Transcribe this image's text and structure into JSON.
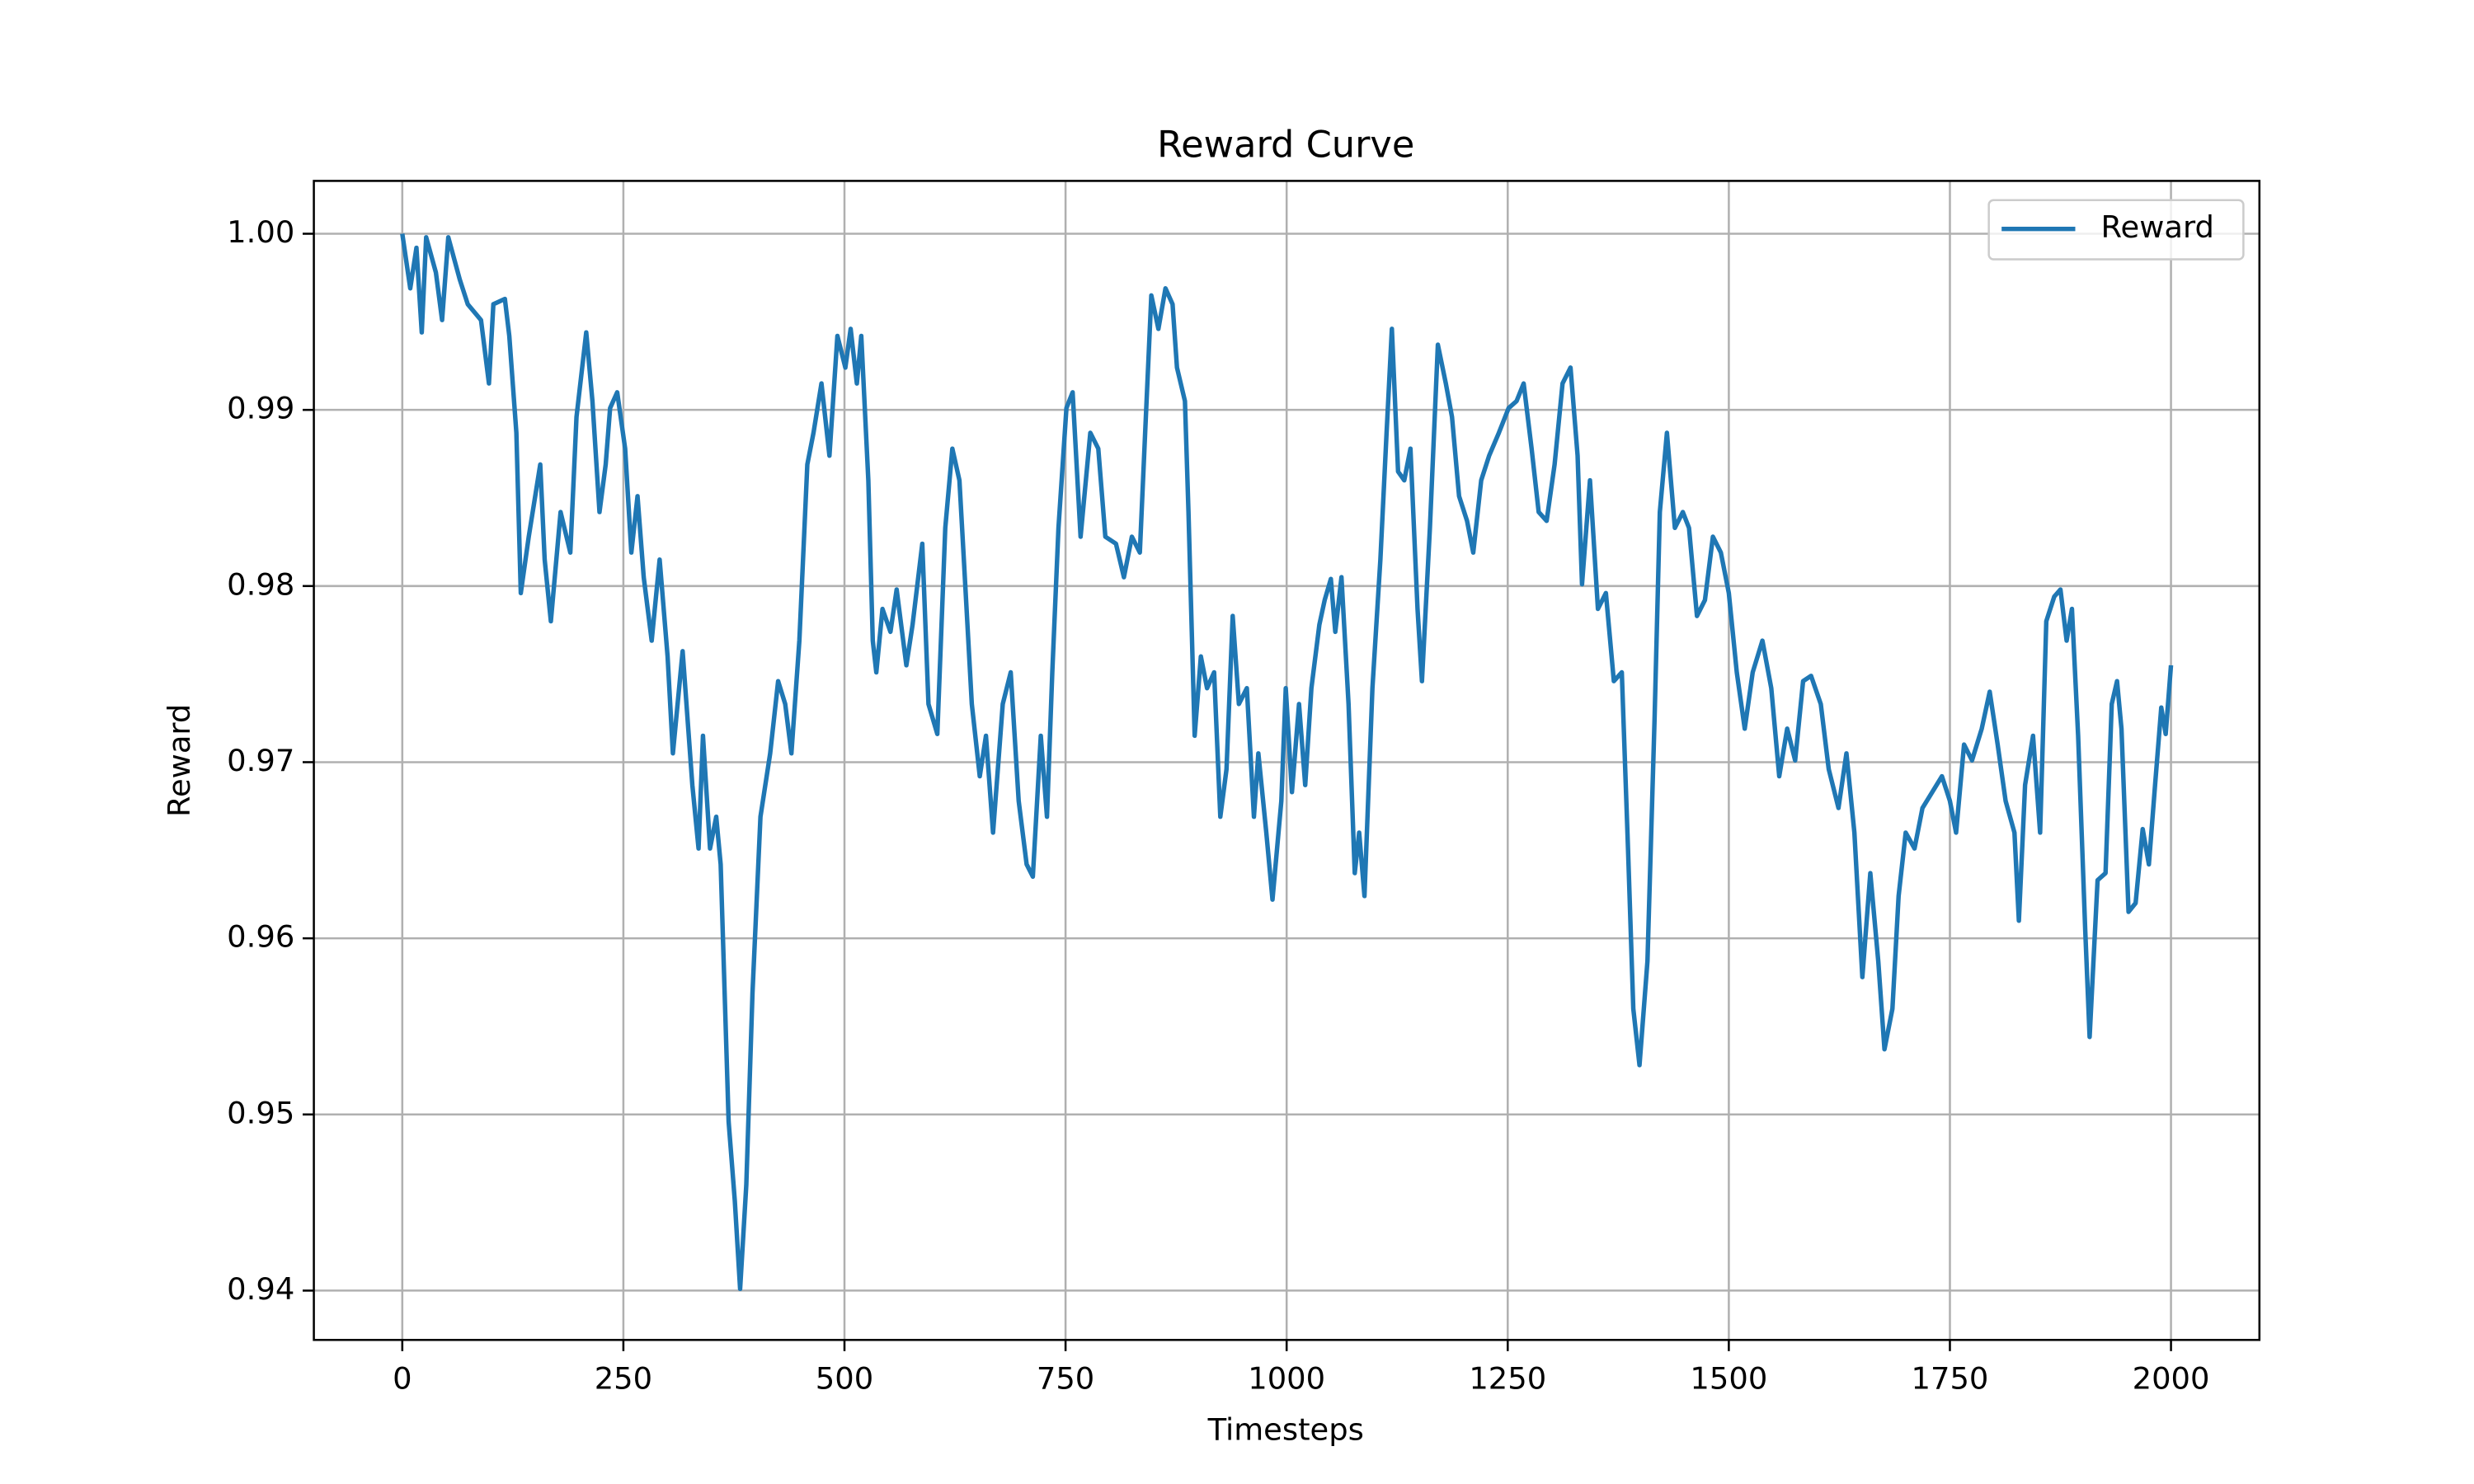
{
  "chart_data": {
    "type": "line",
    "title": "Reward Curve",
    "x_label": "Timesteps",
    "y_label": "Reward",
    "x": [
      0,
      9,
      16,
      22,
      27,
      38,
      45,
      52,
      65,
      74,
      89,
      98,
      103,
      116,
      121,
      129,
      134,
      143,
      156,
      161,
      168,
      179,
      190,
      197,
      208,
      215,
      223,
      230,
      235,
      243,
      252,
      259,
      266,
      273,
      282,
      291,
      300,
      306,
      317,
      328,
      335,
      340,
      348,
      355,
      360,
      369,
      376,
      382,
      389,
      396,
      405,
      416,
      425,
      433,
      440,
      449,
      458,
      465,
      474,
      483,
      492,
      501,
      507,
      514,
      519,
      527,
      532,
      536,
      543,
      552,
      559,
      570,
      577,
      588,
      595,
      605,
      614,
      622,
      630,
      635,
      644,
      653,
      660,
      668,
      679,
      688,
      697,
      706,
      713,
      722,
      729,
      735,
      742,
      751,
      758,
      767,
      778,
      787,
      795,
      807,
      816,
      825,
      834,
      840,
      847,
      855,
      863,
      871,
      876,
      885,
      889,
      896,
      903,
      910,
      918,
      925,
      932,
      939,
      946,
      955,
      963,
      968,
      977,
      984,
      994,
      999,
      1006,
      1014,
      1021,
      1028,
      1037,
      1043,
      1050,
      1055,
      1062,
      1070,
      1077,
      1082,
      1088,
      1097,
      1106,
      1113,
      1119,
      1126,
      1133,
      1140,
      1148,
      1153,
      1162,
      1171,
      1180,
      1187,
      1195,
      1204,
      1211,
      1220,
      1229,
      1240,
      1251,
      1260,
      1268,
      1277,
      1285,
      1294,
      1303,
      1312,
      1321,
      1329,
      1334,
      1343,
      1352,
      1361,
      1370,
      1379,
      1386,
      1392,
      1399,
      1408,
      1416,
      1422,
      1430,
      1439,
      1448,
      1455,
      1464,
      1473,
      1482,
      1491,
      1500,
      1509,
      1518,
      1527,
      1538,
      1548,
      1557,
      1566,
      1575,
      1584,
      1593,
      1604,
      1613,
      1624,
      1633,
      1642,
      1651,
      1660,
      1669,
      1676,
      1685,
      1692,
      1700,
      1710,
      1719,
      1730,
      1741,
      1750,
      1757,
      1766,
      1775,
      1786,
      1795,
      1804,
      1813,
      1823,
      1828,
      1835,
      1844,
      1852,
      1859,
      1868,
      1875,
      1882,
      1888,
      1895,
      1903,
      1908,
      1917,
      1926,
      1933,
      1939,
      1944,
      1952,
      1960,
      1968,
      1975,
      1982,
      1989,
      1994,
      2000
    ],
    "series": [
      {
        "name": "Reward",
        "color": "#1f77b4",
        "values": [
          1.0,
          0.9969,
          0.9992,
          0.9944,
          0.9998,
          0.9978,
          0.9951,
          0.9998,
          0.9974,
          0.996,
          0.9951,
          0.9915,
          0.996,
          0.9963,
          0.9942,
          0.9887,
          0.9796,
          0.9828,
          0.9869,
          0.9815,
          0.978,
          0.9842,
          0.9819,
          0.9896,
          0.9944,
          0.9905,
          0.9842,
          0.9869,
          0.9901,
          0.991,
          0.9878,
          0.9819,
          0.9851,
          0.9805,
          0.9769,
          0.9815,
          0.976,
          0.9705,
          0.9763,
          0.9687,
          0.9651,
          0.9715,
          0.9651,
          0.9669,
          0.9642,
          0.9496,
          0.9451,
          0.9401,
          0.946,
          0.9569,
          0.9669,
          0.9705,
          0.9746,
          0.9733,
          0.9705,
          0.9769,
          0.9869,
          0.9887,
          0.9915,
          0.9874,
          0.9942,
          0.9924,
          0.9946,
          0.9915,
          0.9942,
          0.986,
          0.9769,
          0.9751,
          0.9787,
          0.9774,
          0.9798,
          0.9755,
          0.9778,
          0.9824,
          0.9733,
          0.9716,
          0.9833,
          0.9878,
          0.986,
          0.9815,
          0.9733,
          0.9692,
          0.9715,
          0.966,
          0.9733,
          0.9751,
          0.9678,
          0.9642,
          0.9635,
          0.9715,
          0.9669,
          0.9751,
          0.9833,
          0.9901,
          0.991,
          0.9828,
          0.9887,
          0.9878,
          0.9828,
          0.9824,
          0.9805,
          0.9828,
          0.9819,
          0.9887,
          0.9965,
          0.9946,
          0.9969,
          0.996,
          0.9924,
          0.9905,
          0.9842,
          0.9715,
          0.976,
          0.9742,
          0.9751,
          0.9669,
          0.9696,
          0.9783,
          0.9733,
          0.9742,
          0.9669,
          0.9705,
          0.966,
          0.9622,
          0.9678,
          0.9742,
          0.9683,
          0.9733,
          0.9687,
          0.9742,
          0.9778,
          0.9792,
          0.9804,
          0.9774,
          0.9805,
          0.9733,
          0.9637,
          0.966,
          0.9624,
          0.9742,
          0.9815,
          0.9887,
          0.9946,
          0.9865,
          0.986,
          0.9878,
          0.9787,
          0.9746,
          0.9833,
          0.9937,
          0.9915,
          0.9896,
          0.9851,
          0.9837,
          0.9819,
          0.986,
          0.9874,
          0.9887,
          0.9901,
          0.9905,
          0.9915,
          0.9878,
          0.9842,
          0.9837,
          0.9869,
          0.9915,
          0.9924,
          0.9874,
          0.9801,
          0.986,
          0.9787,
          0.9796,
          0.9746,
          0.9751,
          0.9651,
          0.956,
          0.9528,
          0.9587,
          0.9724,
          0.9842,
          0.9887,
          0.9833,
          0.9842,
          0.9833,
          0.9783,
          0.9792,
          0.9828,
          0.9819,
          0.9796,
          0.9751,
          0.9719,
          0.9751,
          0.9769,
          0.9742,
          0.9692,
          0.9719,
          0.9701,
          0.9746,
          0.9749,
          0.9733,
          0.9696,
          0.9674,
          0.9705,
          0.966,
          0.9578,
          0.9637,
          0.9587,
          0.9537,
          0.956,
          0.9624,
          0.966,
          0.9651,
          0.9674,
          0.9683,
          0.9692,
          0.9678,
          0.966,
          0.971,
          0.9701,
          0.9719,
          0.974,
          0.971,
          0.9678,
          0.966,
          0.961,
          0.9687,
          0.9715,
          0.966,
          0.978,
          0.9794,
          0.9798,
          0.9769,
          0.9787,
          0.9715,
          0.9605,
          0.9544,
          0.9633,
          0.9637,
          0.9733,
          0.9746,
          0.9719,
          0.9615,
          0.962,
          0.9662,
          0.9642,
          0.9687,
          0.9731,
          0.9716,
          0.9755
        ]
      }
    ],
    "xlim": [
      -100,
      2100
    ],
    "ylim": [
      0.9372,
      1.003
    ],
    "xticks": [
      0,
      250,
      500,
      750,
      1000,
      1250,
      1500,
      1750,
      2000
    ],
    "yticks": [
      0.94,
      0.95,
      0.96,
      0.97,
      0.98,
      0.99,
      {
        "value": 1.0,
        "label": "1.00"
      }
    ],
    "grid": true,
    "legend": "upper right"
  }
}
